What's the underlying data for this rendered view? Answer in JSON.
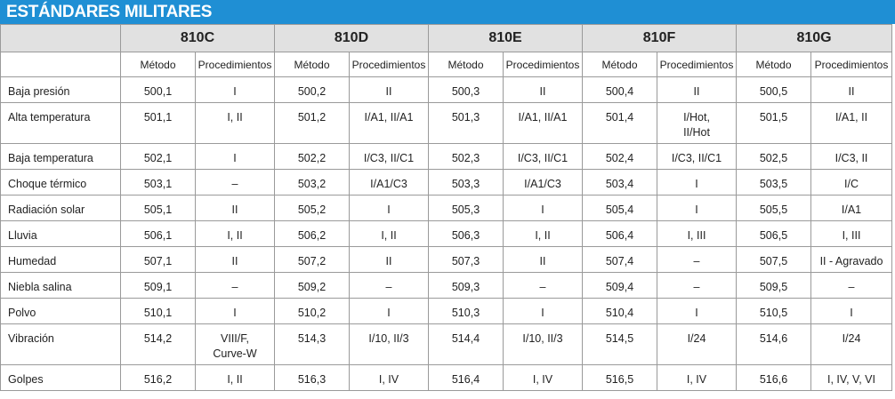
{
  "title": "ESTÁNDARES MILITARES",
  "standards": [
    "810C",
    "810D",
    "810E",
    "810F",
    "810G"
  ],
  "subheaders": {
    "method": "Método",
    "procedures": "Procedimientos"
  },
  "rows": [
    {
      "name": "Baja presión",
      "cells": [
        [
          "500,1",
          "I"
        ],
        [
          "500,2",
          "II"
        ],
        [
          "500,3",
          "II"
        ],
        [
          "500,4",
          "II"
        ],
        [
          "500,5",
          "II"
        ]
      ]
    },
    {
      "name": "Alta temperatura",
      "cells": [
        [
          "501,1",
          "I, II"
        ],
        [
          "501,2",
          "I/A1, II/A1"
        ],
        [
          "501,3",
          "I/A1, II/A1"
        ],
        [
          "501,4",
          "I/Hot,\nII/Hot"
        ],
        [
          "501,5",
          "I/A1, II"
        ]
      ]
    },
    {
      "name": "Baja temperatura",
      "cells": [
        [
          "502,1",
          "I"
        ],
        [
          "502,2",
          "I/C3, II/C1"
        ],
        [
          "502,3",
          "I/C3, II/C1"
        ],
        [
          "502,4",
          "I/C3, II/C1"
        ],
        [
          "502,5",
          "I/C3, II"
        ]
      ]
    },
    {
      "name": "Choque térmico",
      "cells": [
        [
          "503,1",
          "–"
        ],
        [
          "503,2",
          "I/A1/C3"
        ],
        [
          "503,3",
          "I/A1/C3"
        ],
        [
          "503,4",
          "I"
        ],
        [
          "503,5",
          "I/C"
        ]
      ]
    },
    {
      "name": "Radiación solar",
      "cells": [
        [
          "505,1",
          "II"
        ],
        [
          "505,2",
          "I"
        ],
        [
          "505,3",
          "I"
        ],
        [
          "505,4",
          "I"
        ],
        [
          "505,5",
          "I/A1"
        ]
      ]
    },
    {
      "name": "Lluvia",
      "cells": [
        [
          "506,1",
          "I, II"
        ],
        [
          "506,2",
          "I, II"
        ],
        [
          "506,3",
          "I, II"
        ],
        [
          "506,4",
          "I, III"
        ],
        [
          "506,5",
          "I, III"
        ]
      ]
    },
    {
      "name": "Humedad",
      "cells": [
        [
          "507,1",
          "II"
        ],
        [
          "507,2",
          "II"
        ],
        [
          "507,3",
          "II"
        ],
        [
          "507,4",
          "–"
        ],
        [
          "507,5",
          "II - Agravado"
        ]
      ]
    },
    {
      "name": "Niebla salina",
      "cells": [
        [
          "509,1",
          "–"
        ],
        [
          "509,2",
          "–"
        ],
        [
          "509,3",
          "–"
        ],
        [
          "509,4",
          "–"
        ],
        [
          "509,5",
          "–"
        ]
      ]
    },
    {
      "name": "Polvo",
      "cells": [
        [
          "510,1",
          "I"
        ],
        [
          "510,2",
          "I"
        ],
        [
          "510,3",
          "I"
        ],
        [
          "510,4",
          "I"
        ],
        [
          "510,5",
          "I"
        ]
      ]
    },
    {
      "name": "Vibración",
      "cells": [
        [
          "514,2",
          "VIII/F,\nCurve-W"
        ],
        [
          "514,3",
          "I/10, II/3"
        ],
        [
          "514,4",
          "I/10, II/3"
        ],
        [
          "514,5",
          "I/24"
        ],
        [
          "514,6",
          "I/24"
        ]
      ]
    },
    {
      "name": "Golpes",
      "cells": [
        [
          "516,2",
          "I, II"
        ],
        [
          "516,3",
          "I, IV"
        ],
        [
          "516,4",
          "I, IV"
        ],
        [
          "516,5",
          "I, IV"
        ],
        [
          "516,6",
          "I, IV, V, VI"
        ]
      ]
    }
  ]
}
